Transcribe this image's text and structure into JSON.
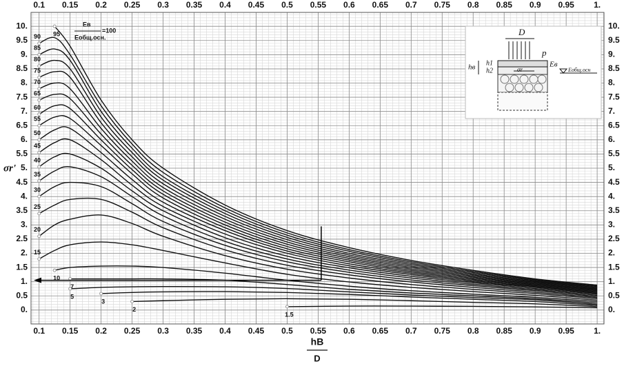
{
  "chart_data": {
    "type": "line",
    "y_label": "σr'",
    "x_label": {
      "numerator": "hВ",
      "denominator": "D"
    },
    "ratio_label": {
      "numerator": "Eв",
      "denominator": "Eобщ.осн.",
      "text": "=100"
    },
    "xlim": [
      0.087,
      1.011
    ],
    "ylim": [
      -0.49,
      10.49
    ],
    "xticks": [
      0.1,
      0.15,
      0.2,
      0.25,
      0.3,
      0.35,
      0.4,
      0.45,
      0.5,
      0.55,
      0.6,
      0.65,
      0.7,
      0.75,
      0.8,
      0.85,
      0.9,
      0.95,
      {
        "value": 1,
        "label": "1."
      }
    ],
    "yticks": [
      {
        "value": 0,
        "label": "0."
      },
      0.5,
      {
        "value": 1,
        "label": "1."
      },
      1.5,
      {
        "value": 2,
        "label": "2."
      },
      2.5,
      {
        "value": 3,
        "label": "3."
      },
      3.5,
      {
        "value": 4,
        "label": "4."
      },
      4.5,
      {
        "value": 5,
        "label": "5."
      },
      5.5,
      {
        "value": 6,
        "label": "6."
      },
      6.5,
      {
        "value": 7,
        "label": "7."
      },
      7.5,
      {
        "value": 8,
        "label": "8."
      },
      8.5,
      {
        "value": 9,
        "label": "9."
      },
      9.5,
      {
        "value": 10,
        "label": "10."
      }
    ],
    "grid": true,
    "minor_grid": {
      "x": 0.01,
      "y": 0.1
    },
    "x": [
      0.1,
      0.125,
      0.15,
      0.2,
      0.25,
      0.3,
      0.4,
      0.5,
      0.6,
      0.7,
      0.8,
      0.9,
      1.0
    ],
    "series": [
      {
        "name": "95",
        "color": "#111111",
        "values": [
          null,
          10.0,
          9.3,
          7.4,
          6.0,
          5.0,
          3.7,
          2.8,
          2.2,
          1.75,
          1.4,
          1.1,
          0.88
        ]
      },
      {
        "name": "90",
        "color": "#111111",
        "values": [
          9.4,
          9.6,
          9.0,
          7.2,
          5.85,
          4.85,
          3.6,
          2.72,
          2.13,
          1.7,
          1.36,
          1.07,
          0.85
        ]
      },
      {
        "name": "85",
        "color": "#111111",
        "values": [
          9.0,
          9.2,
          8.8,
          7.0,
          5.7,
          4.7,
          3.5,
          2.64,
          2.07,
          1.65,
          1.32,
          1.04,
          0.83
        ]
      },
      {
        "name": "80",
        "color": "#111111",
        "values": [
          8.6,
          8.8,
          8.5,
          6.8,
          5.55,
          4.58,
          3.4,
          2.56,
          2.0,
          1.6,
          1.28,
          1.01,
          0.8
        ]
      },
      {
        "name": "75",
        "color": "#111111",
        "values": [
          8.2,
          8.4,
          8.2,
          6.6,
          5.4,
          4.45,
          3.3,
          2.48,
          1.94,
          1.55,
          1.24,
          0.98,
          0.77
        ]
      },
      {
        "name": "70",
        "color": "#111111",
        "values": [
          7.8,
          8.0,
          7.8,
          6.4,
          5.25,
          4.32,
          3.2,
          2.4,
          1.88,
          1.5,
          1.2,
          0.95,
          0.74
        ]
      },
      {
        "name": "65",
        "color": "#111111",
        "values": [
          7.4,
          7.6,
          7.45,
          6.2,
          5.1,
          4.2,
          3.1,
          2.32,
          1.82,
          1.45,
          1.16,
          0.92,
          0.71
        ]
      },
      {
        "name": "60",
        "color": "#111111",
        "values": [
          6.9,
          7.2,
          7.1,
          6.0,
          4.95,
          4.08,
          3.0,
          2.24,
          1.76,
          1.4,
          1.12,
          0.89,
          0.68
        ]
      },
      {
        "name": "55",
        "color": "#111111",
        "values": [
          6.5,
          6.8,
          6.75,
          5.8,
          4.8,
          3.95,
          2.9,
          2.16,
          1.7,
          1.35,
          1.08,
          0.86,
          0.65
        ]
      },
      {
        "name": "50",
        "color": "#111111",
        "values": [
          6.0,
          6.35,
          6.4,
          5.55,
          4.6,
          3.8,
          2.8,
          2.08,
          1.63,
          1.3,
          1.04,
          0.83,
          0.62
        ]
      },
      {
        "name": "45",
        "color": "#111111",
        "values": [
          5.55,
          5.9,
          6.0,
          5.3,
          4.4,
          3.65,
          2.68,
          2.0,
          1.56,
          1.25,
          1.0,
          0.8,
          0.59
        ]
      },
      {
        "name": "40",
        "color": "#111111",
        "values": [
          5.05,
          5.4,
          5.5,
          5.0,
          4.2,
          3.5,
          2.55,
          1.9,
          1.49,
          1.19,
          0.96,
          0.76,
          0.56
        ]
      },
      {
        "name": "35",
        "color": "#111111",
        "values": [
          4.55,
          4.9,
          5.05,
          4.7,
          4.0,
          3.32,
          2.42,
          1.8,
          1.41,
          1.13,
          0.91,
          0.72,
          0.52
        ]
      },
      {
        "name": "30",
        "color": "#111111",
        "values": [
          4.0,
          4.35,
          4.5,
          4.35,
          3.75,
          3.12,
          2.28,
          1.7,
          1.33,
          1.06,
          0.86,
          0.68,
          0.48
        ]
      },
      {
        "name": "25",
        "color": "#111111",
        "values": [
          3.4,
          3.7,
          3.9,
          3.9,
          3.45,
          2.9,
          2.12,
          1.58,
          1.24,
          0.99,
          0.8,
          0.63,
          0.44
        ]
      },
      {
        "name": "20",
        "color": "#111111",
        "values": [
          2.6,
          3.0,
          3.2,
          3.35,
          3.05,
          2.6,
          1.92,
          1.44,
          1.13,
          0.9,
          0.73,
          0.58,
          0.4
        ]
      },
      {
        "name": "15",
        "color": "#111111",
        "values": [
          1.8,
          2.1,
          2.3,
          2.4,
          2.3,
          2.1,
          1.66,
          1.26,
          0.99,
          0.8,
          0.65,
          0.52,
          0.35
        ]
      },
      {
        "name": "10",
        "color": "#111111",
        "values": [
          null,
          1.4,
          1.5,
          1.55,
          1.55,
          1.5,
          1.3,
          1.05,
          0.84,
          0.68,
          0.56,
          0.45,
          0.3
        ]
      },
      {
        "name": "7",
        "color": "#111111",
        "values": [
          null,
          null,
          1.1,
          1.1,
          1.1,
          1.1,
          1.05,
          0.9,
          0.73,
          0.6,
          0.5,
          0.4,
          0.25
        ]
      },
      {
        "name": "5",
        "color": "#111111",
        "values": [
          null,
          null,
          0.75,
          0.8,
          0.82,
          0.83,
          0.82,
          0.76,
          0.64,
          0.53,
          0.44,
          0.36,
          0.2
        ]
      },
      {
        "name": "3",
        "color": "#111111",
        "values": [
          null,
          null,
          null,
          0.58,
          0.62,
          0.64,
          0.65,
          0.62,
          0.55,
          0.46,
          0.38,
          0.3,
          0.16
        ]
      },
      {
        "name": "2",
        "color": "#111111",
        "values": [
          null,
          null,
          null,
          null,
          0.3,
          0.33,
          0.38,
          0.4,
          0.38,
          0.33,
          0.27,
          0.22,
          0.12
        ]
      },
      {
        "name": "1.5",
        "color": "#111111",
        "values": [
          null,
          null,
          null,
          null,
          null,
          null,
          null,
          0.12,
          0.14,
          0.14,
          0.13,
          0.11,
          0.08
        ]
      }
    ],
    "key_line": {
      "x": 0.555,
      "y_top": 2.95,
      "y": 1.05
    },
    "inset": {
      "d": "D",
      "p": "p",
      "h": "hв",
      "h1": "h1",
      "h2": "h2",
      "e": "Eв",
      "sigma": "σr",
      "base": "Eобщ.осн"
    }
  }
}
